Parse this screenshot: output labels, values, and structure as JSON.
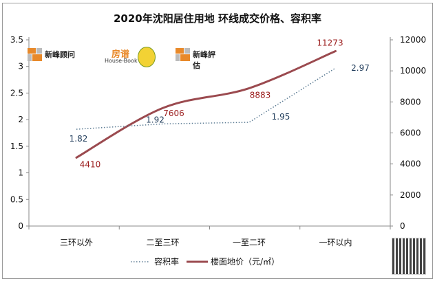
{
  "chart_data": {
    "type": "line",
    "title": "2020年沈阳居住用地 环线成交价格、容积率",
    "categories": [
      "三环以外",
      "二至三环",
      "一至二环",
      "一环以内"
    ],
    "series": [
      {
        "name": "容积率",
        "axis": "left",
        "style": "dotted",
        "color": "#5b7b93",
        "label_color": "#1f3b5a",
        "values": [
          1.82,
          1.92,
          1.95,
          2.97
        ]
      },
      {
        "name": "楼面地价（元/㎡）",
        "axis": "right",
        "style": "solid",
        "color": "#9b4a4f",
        "label_color": "#9b1c1c",
        "values": [
          4410,
          7606,
          8883,
          11273
        ]
      }
    ],
    "left_axis": {
      "min": 0,
      "max": 3.5,
      "ticks": [
        "0",
        "0.5",
        "1",
        "1.5",
        "2",
        "2.5",
        "3",
        "3.5"
      ]
    },
    "right_axis": {
      "min": 0,
      "max": 12000,
      "ticks": [
        "0",
        "2000",
        "4000",
        "6000",
        "8000",
        "10000",
        "12000"
      ]
    },
    "xlabel": "",
    "ylabel": "",
    "grid": false,
    "legend_position": "bottom"
  },
  "header": {
    "title": "2020年沈阳居住用地 环线成交价格、容积率"
  },
  "legend": {
    "ratio": "容积率",
    "price": "楼面地价（元/㎡）"
  },
  "logos": {
    "fresh_peak_consultancy": "新峰顾问",
    "house_book": "House-Book",
    "house_book_cn": "房谱",
    "fresh_peak_appraisal": "新峰評估"
  }
}
